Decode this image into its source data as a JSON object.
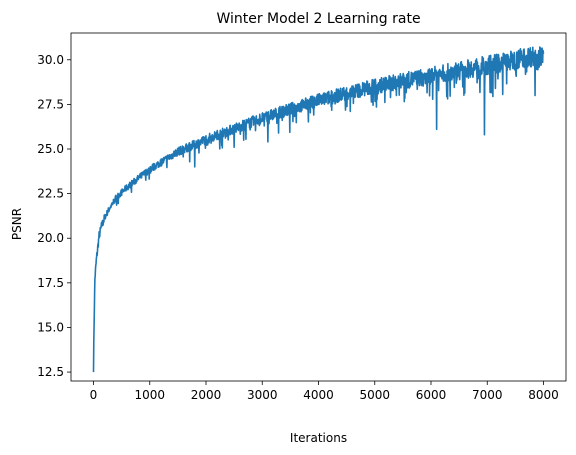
{
  "chart_data": {
    "type": "line",
    "title": "Winter Model 2 Learning rate",
    "xlabel": "Iterations",
    "ylabel": "PSNR",
    "xlim": [
      -400,
      8400
    ],
    "ylim": [
      12.0,
      31.5
    ],
    "xticks": [
      0,
      1000,
      2000,
      3000,
      4000,
      5000,
      6000,
      7000,
      8000
    ],
    "yticks": [
      12.5,
      15.0,
      17.5,
      20.0,
      22.5,
      25.0,
      27.5,
      30.0
    ],
    "xtick_labels": [
      "0",
      "1000",
      "2000",
      "3000",
      "4000",
      "5000",
      "6000",
      "7000",
      "8000"
    ],
    "ytick_labels": [
      "12.5",
      "15.0",
      "17.5",
      "20.0",
      "22.5",
      "25.0",
      "27.5",
      "30.0"
    ],
    "grid": false,
    "series": [
      {
        "color": "#1f77b4",
        "x": [
          0,
          10,
          25,
          50,
          75,
          100,
          150,
          200,
          300,
          400,
          500,
          600,
          800,
          1000,
          1200,
          1500,
          1800,
          2000,
          2500,
          3000,
          3500,
          4000,
          4500,
          5000,
          5500,
          6000,
          6500,
          7000,
          7500,
          7700,
          8000
        ],
        "y": [
          12.8,
          15.2,
          17.8,
          18.8,
          19.5,
          20.2,
          20.8,
          21.2,
          21.8,
          22.3,
          22.6,
          22.9,
          23.4,
          23.9,
          24.3,
          24.9,
          25.3,
          25.6,
          26.2,
          26.8,
          27.3,
          27.8,
          28.2,
          28.6,
          28.9,
          29.2,
          29.5,
          29.8,
          30.1,
          30.3,
          30.3
        ]
      }
    ],
    "dips": [
      {
        "x": 6100,
        "y": 26.1
      },
      {
        "x": 6950,
        "y": 25.8
      },
      {
        "x": 7850,
        "y": 28.0
      },
      {
        "x": 1800,
        "y": 24.0
      },
      {
        "x": 2500,
        "y": 25.1
      },
      {
        "x": 3100,
        "y": 25.4
      }
    ]
  }
}
